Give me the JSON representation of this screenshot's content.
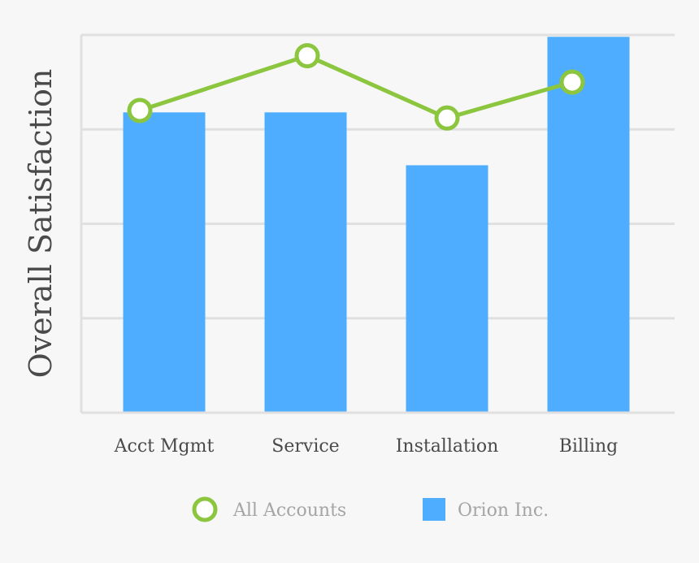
{
  "chart_data": {
    "type": "bar",
    "title": "",
    "xlabel": "",
    "ylabel": "Overall Satisfaction",
    "categories": [
      "Acct Mgmt",
      "Service",
      "Installation",
      "Billing"
    ],
    "ylim": [
      0,
      4
    ],
    "grid": true,
    "legend_position": "bottom",
    "series": [
      {
        "name": "All Accounts",
        "type": "line",
        "values": [
          3.2,
          3.78,
          3.12,
          3.5
        ],
        "color": "#8cc63f"
      },
      {
        "name": "Orion Inc.",
        "type": "bar",
        "values": [
          3.18,
          3.18,
          2.62,
          3.98
        ],
        "color": "#4fadff"
      }
    ]
  },
  "colors": {
    "background": "#f7f7f7",
    "grid": "#e0e0e0",
    "text": "#4a4a4a",
    "legend_text": "#a5a5a5"
  }
}
